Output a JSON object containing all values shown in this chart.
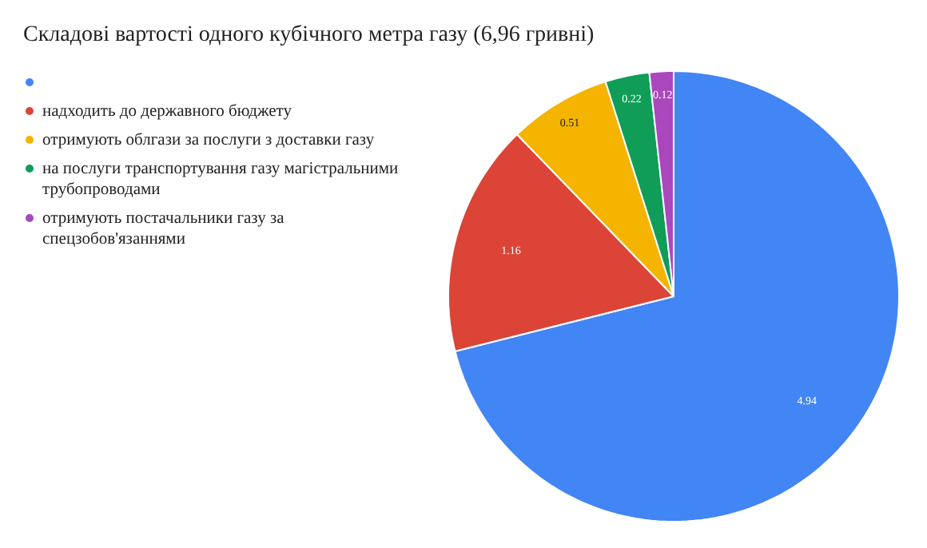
{
  "chart_data": {
    "type": "pie",
    "title": "Складові вартості одного кубічного метра газу (6,96 гривні)",
    "categories": [
      null,
      "надходить до державного бюджету",
      "отримують облгази за послуги з доставки газу",
      "на послуги транспортування газу магістральними трубопроводами",
      "отримують постачальники газу за спецзобов'язаннями"
    ],
    "values": [
      4.94,
      1.16,
      0.51,
      0.22,
      0.12
    ],
    "colors": [
      "#4285f4",
      "#db4437",
      "#f4b400",
      "#0f9d58",
      "#ab47bc"
    ],
    "data_labels": true,
    "legend": "left"
  }
}
